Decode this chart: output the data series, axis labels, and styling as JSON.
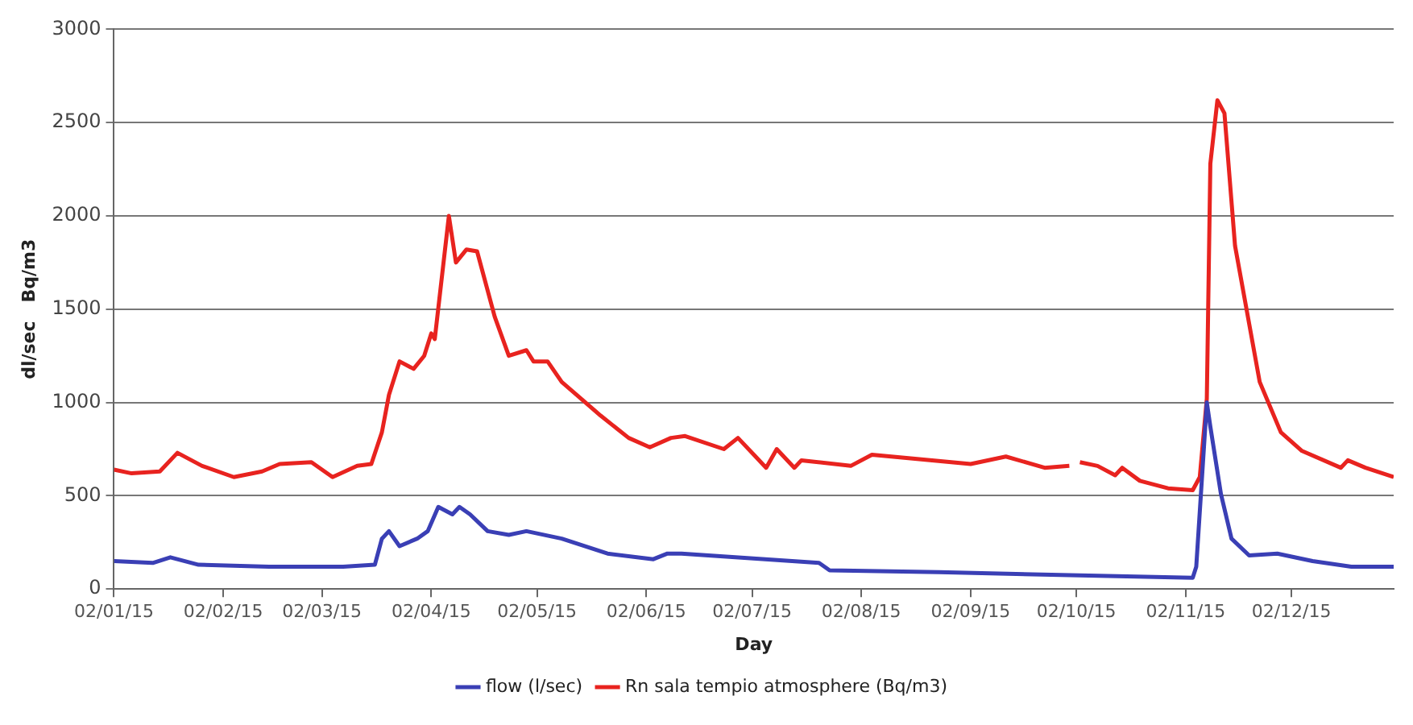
{
  "chart_data": {
    "type": "line",
    "xlabel": "Day",
    "ylabel": "dl/sec   Bq/m3",
    "xlim": [
      "2015-01-02",
      "2015-12-31"
    ],
    "xticks": [
      {
        "value": "2015-01-02",
        "label": "02/01/15"
      },
      {
        "value": "2015-02-02",
        "label": "02/02/15"
      },
      {
        "value": "2015-03-02",
        "label": "02/03/15"
      },
      {
        "value": "2015-04-02",
        "label": "02/04/15"
      },
      {
        "value": "2015-05-02",
        "label": "02/05/15"
      },
      {
        "value": "2015-06-02",
        "label": "02/06/15"
      },
      {
        "value": "2015-07-02",
        "label": "02/07/15"
      },
      {
        "value": "2015-08-02",
        "label": "02/08/15"
      },
      {
        "value": "2015-09-02",
        "label": "02/09/15"
      },
      {
        "value": "2015-10-02",
        "label": "02/10/15"
      },
      {
        "value": "2015-11-02",
        "label": "02/11/15"
      },
      {
        "value": "2015-12-02",
        "label": "02/12/15"
      }
    ],
    "ylim": [
      0,
      3000
    ],
    "yticks": [
      0,
      500,
      1000,
      1500,
      2000,
      2500,
      3000
    ],
    "grid": "y",
    "legend": "bottom",
    "marker": "none",
    "line_style": "solid",
    "series": [
      {
        "name": "flow (l/sec)",
        "color": "#3a3fb5",
        "x": [
          "2015-01-02",
          "2015-01-13",
          "2015-01-18",
          "2015-01-26",
          "2015-02-15",
          "2015-03-08",
          "2015-03-17",
          "2015-03-19",
          "2015-03-21",
          "2015-03-24",
          "2015-03-29",
          "2015-04-01",
          "2015-04-04",
          "2015-04-08",
          "2015-04-10",
          "2015-04-13",
          "2015-04-18",
          "2015-04-24",
          "2015-04-29",
          "2015-05-09",
          "2015-05-22",
          "2015-06-04",
          "2015-06-08",
          "2015-06-12",
          "2015-07-21",
          "2015-07-24",
          "2015-08-24",
          "2015-11-04",
          "2015-11-05",
          "2015-11-08",
          "2015-11-09",
          "2015-11-12",
          "2015-11-15",
          "2015-11-20",
          "2015-11-28",
          "2015-12-08",
          "2015-12-19",
          "2015-12-31"
        ],
        "values": [
          150,
          140,
          170,
          130,
          120,
          120,
          130,
          270,
          310,
          230,
          270,
          310,
          440,
          400,
          440,
          400,
          310,
          290,
          310,
          270,
          190,
          160,
          190,
          190,
          140,
          100,
          90,
          60,
          120,
          1000,
          870,
          510,
          270,
          180,
          190,
          150,
          120,
          120
        ]
      },
      {
        "name": "Rn sala tempio atmosphere (Bq/m3)",
        "color": "#e8231f",
        "x": [
          "2015-01-02",
          "2015-01-07",
          "2015-01-15",
          "2015-01-20",
          "2015-01-27",
          "2015-02-05",
          "2015-02-13",
          "2015-02-18",
          "2015-02-27",
          "2015-03-05",
          "2015-03-12",
          "2015-03-16",
          "2015-03-19",
          "2015-03-21",
          "2015-03-24",
          "2015-03-28",
          "2015-03-31",
          "2015-04-02",
          "2015-04-03",
          "2015-04-07",
          "2015-04-09",
          "2015-04-12",
          "2015-04-15",
          "2015-04-20",
          "2015-04-24",
          "2015-04-29",
          "2015-05-01",
          "2015-05-05",
          "2015-05-09",
          "2015-05-20",
          "2015-05-28",
          "2015-06-03",
          "2015-06-09",
          "2015-06-13",
          "2015-06-24",
          "2015-06-28",
          "2015-07-03",
          "2015-07-06",
          "2015-07-09",
          "2015-07-14",
          "2015-07-16",
          "2015-07-30",
          "2015-08-05",
          "2015-08-16",
          "2015-09-02",
          "2015-09-12",
          "2015-09-23",
          "2015-09-30",
          "2015-10-01",
          "2015-10-03",
          "2015-10-08",
          "2015-10-13",
          "2015-10-15",
          "2015-10-20",
          "2015-10-28",
          "2015-11-04",
          "2015-11-06",
          "2015-11-08",
          "2015-11-09",
          "2015-11-11",
          "2015-11-13",
          "2015-11-16",
          "2015-11-23",
          "2015-11-29",
          "2015-12-05",
          "2015-12-16",
          "2015-12-18",
          "2015-12-23",
          "2015-12-31"
        ],
        "values": [
          640,
          620,
          630,
          730,
          660,
          600,
          630,
          670,
          680,
          600,
          660,
          670,
          840,
          1040,
          1220,
          1180,
          1250,
          1370,
          1340,
          2000,
          1750,
          1820,
          1810,
          1460,
          1250,
          1280,
          1220,
          1220,
          1110,
          930,
          810,
          760,
          810,
          820,
          750,
          810,
          710,
          650,
          750,
          650,
          690,
          660,
          720,
          700,
          670,
          710,
          650,
          660,
          null,
          680,
          660,
          610,
          650,
          580,
          540,
          530,
          600,
          1020,
          2280,
          2620,
          2550,
          1840,
          1110,
          840,
          740,
          650,
          690,
          650,
          600
        ]
      }
    ]
  }
}
